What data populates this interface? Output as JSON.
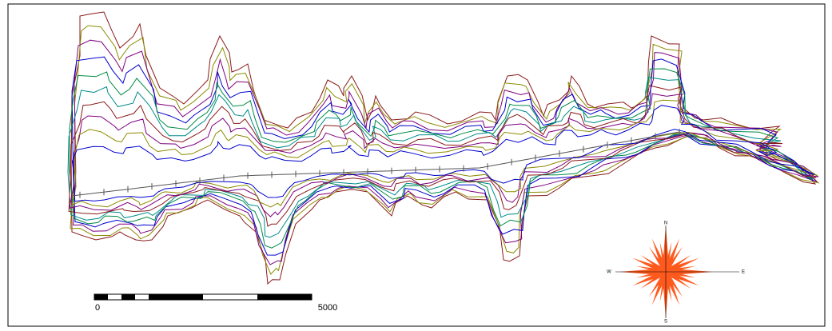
{
  "scale_bar": {
    "labels": [
      "0",
      "5000"
    ]
  },
  "compass": {
    "labels": [
      "N",
      "W",
      "E",
      "S"
    ]
  }
}
